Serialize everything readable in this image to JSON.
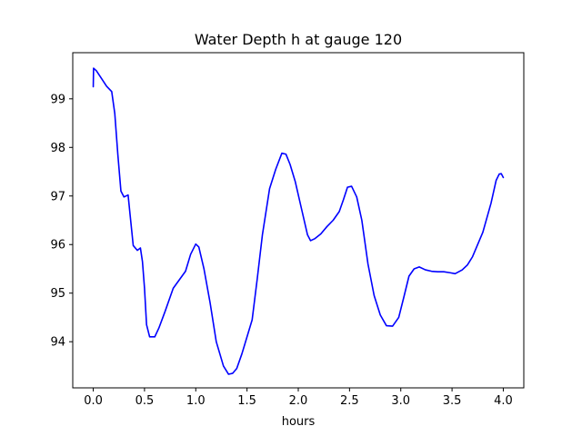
{
  "chart_data": {
    "type": "line",
    "title": "Water Depth h at gauge 120",
    "xlabel": "hours",
    "ylabel": "",
    "xlim": [
      -0.2,
      4.2
    ],
    "ylim": [
      93.05,
      99.95
    ],
    "grid": false,
    "legend": "none",
    "xticks": [
      0.0,
      0.5,
      1.0,
      1.5,
      2.0,
      2.5,
      3.0,
      3.5,
      4.0
    ],
    "xtick_labels": [
      "0.0",
      "0.5",
      "1.0",
      "1.5",
      "2.0",
      "2.5",
      "3.0",
      "3.5",
      "4.0"
    ],
    "yticks": [
      94,
      95,
      96,
      97,
      98,
      99
    ],
    "ytick_labels": [
      "94",
      "95",
      "96",
      "97",
      "98",
      "99"
    ],
    "series": [
      {
        "color": "#0000ff",
        "x": [
          0.0,
          0.003,
          0.03,
          0.08,
          0.13,
          0.18,
          0.21,
          0.24,
          0.27,
          0.3,
          0.34,
          0.36,
          0.39,
          0.43,
          0.46,
          0.48,
          0.5,
          0.52,
          0.55,
          0.6,
          0.64,
          0.7,
          0.78,
          0.9,
          0.95,
          1.0,
          1.03,
          1.08,
          1.14,
          1.2,
          1.27,
          1.32,
          1.36,
          1.4,
          1.45,
          1.55,
          1.6,
          1.65,
          1.72,
          1.78,
          1.84,
          1.88,
          1.92,
          1.97,
          2.03,
          2.09,
          2.12,
          2.16,
          2.22,
          2.28,
          2.34,
          2.4,
          2.44,
          2.48,
          2.52,
          2.57,
          2.62,
          2.68,
          2.74,
          2.8,
          2.86,
          2.92,
          2.98,
          3.03,
          3.08,
          3.13,
          3.18,
          3.24,
          3.3,
          3.36,
          3.42,
          3.48,
          3.53,
          3.6,
          3.65,
          3.7,
          3.8,
          3.88,
          3.93,
          3.96,
          3.98,
          4.0
        ],
        "values": [
          99.25,
          99.63,
          99.58,
          99.42,
          99.26,
          99.15,
          98.7,
          97.85,
          97.1,
          96.98,
          97.02,
          96.6,
          95.98,
          95.88,
          95.93,
          95.65,
          95.1,
          94.35,
          94.1,
          94.1,
          94.28,
          94.62,
          95.1,
          95.45,
          95.8,
          96.01,
          95.95,
          95.5,
          94.8,
          94.0,
          93.5,
          93.33,
          93.35,
          93.45,
          93.75,
          94.45,
          95.3,
          96.2,
          97.15,
          97.55,
          97.88,
          97.86,
          97.65,
          97.3,
          96.75,
          96.2,
          96.08,
          96.12,
          96.22,
          96.37,
          96.5,
          96.68,
          96.92,
          97.18,
          97.2,
          96.98,
          96.5,
          95.6,
          94.95,
          94.55,
          94.33,
          94.32,
          94.5,
          94.92,
          95.35,
          95.5,
          95.54,
          95.48,
          95.45,
          95.44,
          95.44,
          95.42,
          95.4,
          95.48,
          95.58,
          95.75,
          96.25,
          96.85,
          97.32,
          97.45,
          97.46,
          97.38
        ]
      }
    ]
  }
}
